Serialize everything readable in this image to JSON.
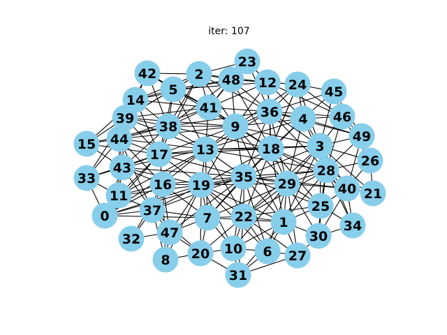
{
  "title": "iter: 107",
  "node_color": "#87ceeb",
  "edge_color": "#000000",
  "nodes": [
    "0",
    "1",
    "2",
    "3",
    "4",
    "5",
    "6",
    "7",
    "8",
    "9",
    "10",
    "11",
    "12",
    "13",
    "14",
    "15",
    "16",
    "17",
    "18",
    "19",
    "20",
    "21",
    "22",
    "23",
    "24",
    "25",
    "26",
    "27",
    "28",
    "29",
    "30",
    "31",
    "32",
    "33",
    "34",
    "35",
    "36",
    "37",
    "38",
    "39",
    "40",
    "41",
    "42",
    "43",
    "44",
    "45",
    "46",
    "47",
    "48",
    "49"
  ],
  "edges": [
    [
      0,
      37
    ],
    [
      0,
      11
    ],
    [
      0,
      16
    ],
    [
      0,
      7
    ],
    [
      0,
      19
    ],
    [
      0,
      43
    ],
    [
      0,
      17
    ],
    [
      0,
      13
    ],
    [
      0,
      35
    ],
    [
      1,
      22
    ],
    [
      1,
      18
    ],
    [
      1,
      29
    ],
    [
      1,
      25
    ],
    [
      1,
      27
    ],
    [
      1,
      30
    ],
    [
      1,
      3
    ],
    [
      1,
      28
    ],
    [
      1,
      35
    ],
    [
      1,
      7
    ],
    [
      1,
      10
    ],
    [
      1,
      6
    ],
    [
      1,
      31
    ],
    [
      1,
      9
    ],
    [
      1,
      19
    ],
    [
      2,
      42
    ],
    [
      2,
      48
    ],
    [
      2,
      23
    ],
    [
      2,
      5
    ],
    [
      2,
      41
    ],
    [
      2,
      14
    ],
    [
      2,
      12
    ],
    [
      2,
      36
    ],
    [
      2,
      9
    ],
    [
      2,
      39
    ],
    [
      2,
      38
    ],
    [
      2,
      17
    ],
    [
      3,
      28
    ],
    [
      3,
      18
    ],
    [
      3,
      4
    ],
    [
      3,
      26
    ],
    [
      3,
      49
    ],
    [
      3,
      29
    ],
    [
      3,
      36
    ],
    [
      3,
      46
    ],
    [
      3,
      40
    ],
    [
      3,
      25
    ],
    [
      3,
      35
    ],
    [
      3,
      45
    ],
    [
      3,
      24
    ],
    [
      3,
      13
    ],
    [
      3,
      9
    ],
    [
      3,
      22
    ],
    [
      3,
      21
    ],
    [
      3,
      34
    ],
    [
      4,
      36
    ],
    [
      4,
      24
    ],
    [
      4,
      45
    ],
    [
      4,
      46
    ],
    [
      4,
      18
    ],
    [
      4,
      9
    ],
    [
      4,
      12
    ],
    [
      4,
      49
    ],
    [
      4,
      28
    ],
    [
      4,
      29
    ],
    [
      4,
      35
    ],
    [
      4,
      13
    ],
    [
      5,
      42
    ],
    [
      5,
      41
    ],
    [
      5,
      14
    ],
    [
      5,
      48
    ],
    [
      5,
      38
    ],
    [
      5,
      39
    ],
    [
      5,
      17
    ],
    [
      5,
      9
    ],
    [
      5,
      13
    ],
    [
      5,
      12
    ],
    [
      6,
      10
    ],
    [
      6,
      22
    ],
    [
      6,
      27
    ],
    [
      6,
      29
    ],
    [
      6,
      35
    ],
    [
      6,
      31
    ],
    [
      6,
      19
    ],
    [
      7,
      22
    ],
    [
      7,
      35
    ],
    [
      7,
      19
    ],
    [
      7,
      16
    ],
    [
      7,
      47
    ],
    [
      7,
      20
    ],
    [
      7,
      10
    ],
    [
      7,
      37
    ],
    [
      7,
      29
    ],
    [
      7,
      18
    ],
    [
      7,
      13
    ],
    [
      8,
      47
    ],
    [
      8,
      20
    ],
    [
      8,
      19
    ],
    [
      8,
      16
    ],
    [
      8,
      37
    ],
    [
      9,
      41
    ],
    [
      9,
      36
    ],
    [
      9,
      18
    ],
    [
      9,
      13
    ],
    [
      9,
      38
    ],
    [
      9,
      48
    ],
    [
      9,
      12
    ],
    [
      9,
      35
    ],
    [
      9,
      17
    ],
    [
      9,
      24
    ],
    [
      9,
      29
    ],
    [
      9,
      19
    ],
    [
      9,
      44
    ],
    [
      9,
      39
    ],
    [
      10,
      22
    ],
    [
      10,
      31
    ],
    [
      10,
      20
    ],
    [
      10,
      35
    ],
    [
      10,
      29
    ],
    [
      10,
      19
    ],
    [
      11,
      43
    ],
    [
      11,
      16
    ],
    [
      11,
      37
    ],
    [
      11,
      33
    ],
    [
      11,
      17
    ],
    [
      11,
      19
    ],
    [
      11,
      44
    ],
    [
      11,
      13
    ],
    [
      12,
      48
    ],
    [
      12,
      36
    ],
    [
      12,
      24
    ],
    [
      12,
      23
    ],
    [
      12,
      41
    ],
    [
      12,
      18
    ],
    [
      12,
      46
    ],
    [
      13,
      17
    ],
    [
      13,
      18
    ],
    [
      13,
      19
    ],
    [
      13,
      38
    ],
    [
      13,
      41
    ],
    [
      13,
      35
    ],
    [
      13,
      16
    ],
    [
      13,
      44
    ],
    [
      13,
      43
    ],
    [
      13,
      39
    ],
    [
      13,
      36
    ],
    [
      13,
      28
    ],
    [
      13,
      22
    ],
    [
      14,
      39
    ],
    [
      14,
      42
    ],
    [
      14,
      44
    ],
    [
      14,
      41
    ],
    [
      14,
      38
    ],
    [
      14,
      17
    ],
    [
      14,
      15
    ],
    [
      14,
      48
    ],
    [
      15,
      44
    ],
    [
      15,
      39
    ],
    [
      15,
      43
    ],
    [
      15,
      17
    ],
    [
      15,
      38
    ],
    [
      16,
      43
    ],
    [
      16,
      19
    ],
    [
      16,
      37
    ],
    [
      16,
      17
    ],
    [
      16,
      35
    ],
    [
      16,
      47
    ],
    [
      16,
      44
    ],
    [
      17,
      44
    ],
    [
      17,
      43
    ],
    [
      17,
      38
    ],
    [
      17,
      39
    ],
    [
      17,
      19
    ],
    [
      17,
      35
    ],
    [
      17,
      18
    ],
    [
      18,
      36
    ],
    [
      18,
      35
    ],
    [
      18,
      29
    ],
    [
      18,
      28
    ],
    [
      18,
      22
    ],
    [
      18,
      41
    ],
    [
      18,
      19
    ],
    [
      18,
      38
    ],
    [
      18,
      40
    ],
    [
      18,
      25
    ],
    [
      18,
      48
    ],
    [
      18,
      24
    ],
    [
      19,
      35
    ],
    [
      19,
      22
    ],
    [
      19,
      37
    ],
    [
      19,
      20
    ],
    [
      19,
      29
    ],
    [
      19,
      43
    ],
    [
      19,
      47
    ],
    [
      19,
      28
    ],
    [
      20,
      47
    ],
    [
      20,
      22
    ],
    [
      20,
      31
    ],
    [
      20,
      37
    ],
    [
      21,
      40
    ],
    [
      21,
      28
    ],
    [
      21,
      26
    ],
    [
      22,
      35
    ],
    [
      22,
      29
    ],
    [
      22,
      31
    ],
    [
      22,
      27
    ],
    [
      22,
      28
    ],
    [
      22,
      25
    ],
    [
      23,
      48
    ],
    [
      23,
      12
    ],
    [
      23,
      41
    ],
    [
      23,
      36
    ],
    [
      24,
      45
    ],
    [
      24,
      36
    ],
    [
      24,
      46
    ],
    [
      24,
      48
    ],
    [
      24,
      18
    ],
    [
      25,
      29
    ],
    [
      25,
      28
    ],
    [
      25,
      40
    ],
    [
      25,
      30
    ],
    [
      25,
      34
    ],
    [
      25,
      35
    ],
    [
      26,
      49
    ],
    [
      26,
      40
    ],
    [
      26,
      28
    ],
    [
      26,
      46
    ],
    [
      27,
      30
    ],
    [
      27,
      29
    ],
    [
      27,
      31
    ],
    [
      28,
      40
    ],
    [
      28,
      29
    ],
    [
      28,
      49
    ],
    [
      28,
      35
    ],
    [
      28,
      36
    ],
    [
      28,
      30
    ],
    [
      28,
      34
    ],
    [
      28,
      46
    ],
    [
      29,
      35
    ],
    [
      29,
      40
    ],
    [
      29,
      36
    ],
    [
      29,
      30
    ],
    [
      30,
      34
    ],
    [
      30,
      40
    ],
    [
      33,
      43
    ],
    [
      33,
      44
    ],
    [
      33,
      17
    ],
    [
      33,
      39
    ],
    [
      35,
      36
    ],
    [
      35,
      43
    ],
    [
      35,
      37
    ],
    [
      35,
      47
    ],
    [
      35,
      40
    ],
    [
      36,
      41
    ],
    [
      36,
      38
    ],
    [
      36,
      48
    ],
    [
      36,
      46
    ],
    [
      36,
      45
    ],
    [
      36,
      49
    ],
    [
      37,
      47
    ],
    [
      37,
      43
    ],
    [
      37,
      44
    ],
    [
      38,
      39
    ],
    [
      38,
      41
    ],
    [
      38,
      44
    ],
    [
      38,
      48
    ],
    [
      38,
      43
    ],
    [
      38,
      42
    ],
    [
      39,
      44
    ],
    [
      39,
      42
    ],
    [
      39,
      41
    ],
    [
      39,
      43
    ],
    [
      40,
      49
    ],
    [
      40,
      34
    ],
    [
      41,
      48
    ],
    [
      41,
      42
    ],
    [
      41,
      44
    ],
    [
      43,
      44
    ],
    [
      45,
      46
    ],
    [
      45,
      49
    ],
    [
      46,
      49
    ],
    [
      32,
      37
    ],
    [
      32,
      47
    ],
    [
      32,
      16
    ],
    [
      0,
      33
    ]
  ]
}
